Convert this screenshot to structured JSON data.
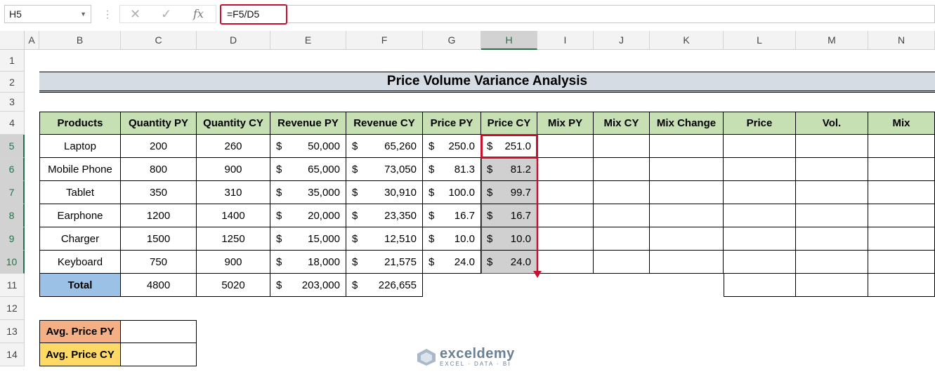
{
  "formula_bar": {
    "name_box": "H5",
    "formula": "=F5/D5"
  },
  "columns": [
    "A",
    "B",
    "C",
    "D",
    "E",
    "F",
    "G",
    "H",
    "I",
    "J",
    "K",
    "L",
    "M",
    "N"
  ],
  "rows": [
    "1",
    "2",
    "3",
    "4",
    "5",
    "6",
    "7",
    "8",
    "9",
    "10",
    "11",
    "12",
    "13",
    "14"
  ],
  "sheet": {
    "title": "Price Volume Variance Analysis",
    "headers": [
      "Products",
      "Quantity PY",
      "Quantity CY",
      "Revenue PY",
      "Revenue CY",
      "Price PY",
      "Price CY",
      "Mix PY",
      "Mix CY",
      "Mix Change",
      "Price",
      "Vol.",
      "Mix"
    ],
    "currency": "$",
    "data": [
      {
        "product": "Laptop",
        "qty_py": "200",
        "qty_cy": "260",
        "rev_py": "50,000",
        "rev_cy": "65,260",
        "price_py": "250.0",
        "price_cy": "251.0"
      },
      {
        "product": "Mobile Phone",
        "qty_py": "800",
        "qty_cy": "900",
        "rev_py": "65,000",
        "rev_cy": "73,050",
        "price_py": "81.3",
        "price_cy": "81.2"
      },
      {
        "product": "Tablet",
        "qty_py": "350",
        "qty_cy": "310",
        "rev_py": "35,000",
        "rev_cy": "30,910",
        "price_py": "100.0",
        "price_cy": "99.7"
      },
      {
        "product": "Earphone",
        "qty_py": "1200",
        "qty_cy": "1400",
        "rev_py": "20,000",
        "rev_cy": "23,350",
        "price_py": "16.7",
        "price_cy": "16.7"
      },
      {
        "product": "Charger",
        "qty_py": "1500",
        "qty_cy": "1250",
        "rev_py": "15,000",
        "rev_cy": "12,510",
        "price_py": "10.0",
        "price_cy": "10.0"
      },
      {
        "product": "Keyboard",
        "qty_py": "750",
        "qty_cy": "900",
        "rev_py": "18,000",
        "rev_cy": "21,575",
        "price_py": "24.0",
        "price_cy": "24.0"
      }
    ],
    "total": {
      "label": "Total",
      "qty_py": "4800",
      "qty_cy": "5020",
      "rev_py": "203,000",
      "rev_cy": "226,655"
    },
    "avg_price_py_label": "Avg. Price PY",
    "avg_price_cy_label": "Avg. Price CY"
  },
  "watermark": {
    "name": "exceldemy",
    "tagline": "EXCEL · DATA · BI"
  },
  "colors": {
    "header_green": "#c6e0b4",
    "title_gray": "#d6dce4",
    "total_blue": "#9bc2e6",
    "avg_py_orange": "#f4b084",
    "avg_cy_yellow": "#ffd966",
    "highlight_red": "#c8102e"
  }
}
